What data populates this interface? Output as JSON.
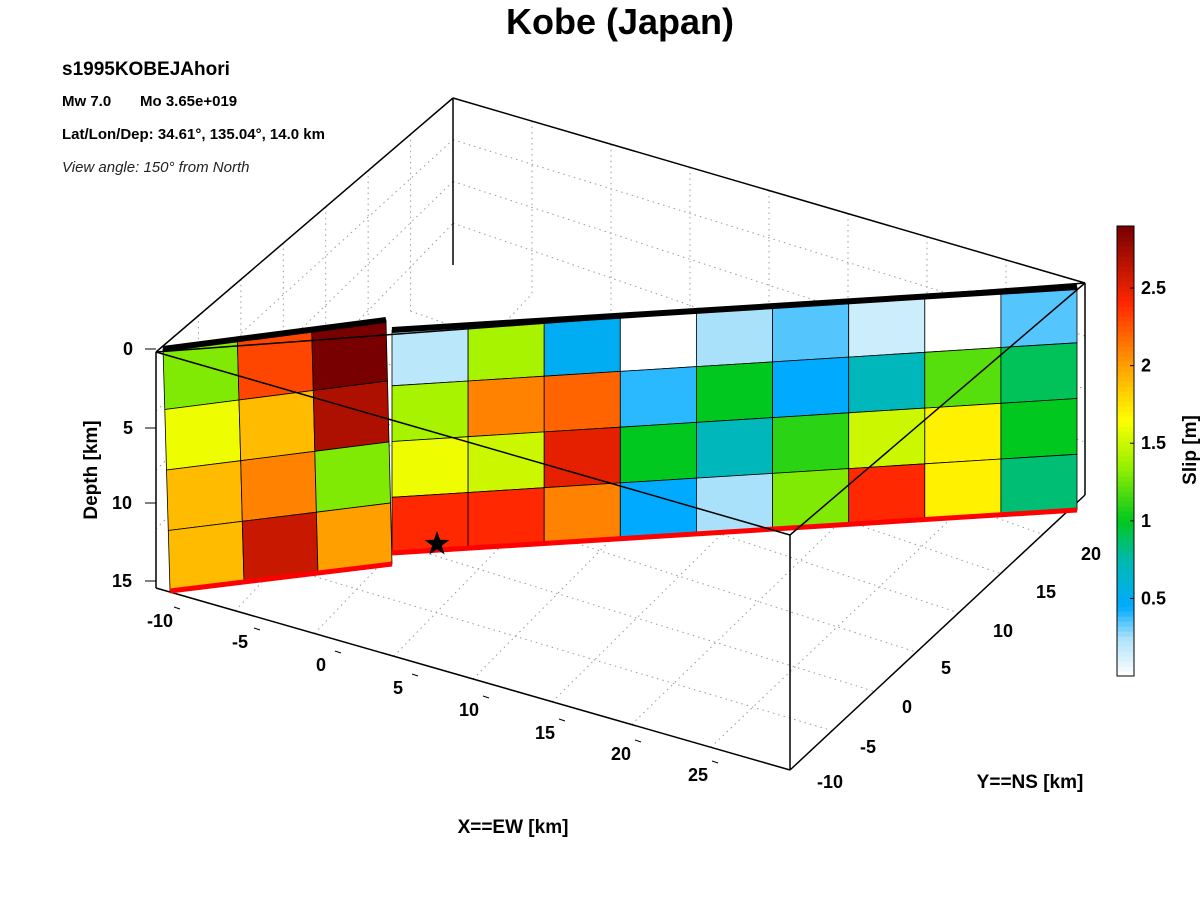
{
  "chart_data": {
    "type": "heatmap",
    "title": "Kobe (Japan)",
    "model_name": "s1995KOBEJAhori",
    "mw_text": "Mw 7.0",
    "mo_text": "Mo 3.65e+019",
    "location_text": "Lat/Lon/Dep: 34.61°, 135.04°, 14.0 km",
    "view_text": "View angle: 150° from North",
    "xlabel": "X==EW [km]",
    "ylabel": "Y==NS [km]",
    "zlabel": "Depth [km]",
    "colorbar_label": "Slip [m]",
    "xticks": [
      "-10",
      "-5",
      "0",
      "5",
      "10",
      "15",
      "20",
      "25"
    ],
    "yticks": [
      "-10",
      "-5",
      "0",
      "5",
      "10",
      "15",
      "20"
    ],
    "zticks": [
      "0",
      "5",
      "10",
      "15"
    ],
    "colorbar_ticks": [
      "0.5",
      "1",
      "1.5",
      "2",
      "2.5"
    ],
    "colorbar_range": [
      0,
      2.9
    ],
    "grid": true,
    "hypocenter_marker": "star",
    "segments": [
      {
        "name": "",
        "rows": 4,
        "cols": 3,
        "slip": [
          [
            1.3,
            2.3,
            2.9
          ],
          [
            1.6,
            1.9,
            2.7
          ],
          [
            1.9,
            2.1,
            1.3
          ],
          [
            1.9,
            2.6,
            2.0
          ]
        ]
      },
      {
        "name": "",
        "rows": 4,
        "cols": 9,
        "slip": [
          [
            0.2,
            1.4,
            0.5,
            0.0,
            0.25,
            0.35,
            0.15,
            0.0,
            0.35
          ],
          [
            1.4,
            2.1,
            2.2,
            0.4,
            1.0,
            0.45,
            0.7,
            1.2,
            0.9
          ],
          [
            1.6,
            1.5,
            2.5,
            1.0,
            0.7,
            1.1,
            1.5,
            1.7,
            1.0
          ],
          [
            2.4,
            2.4,
            2.1,
            0.45,
            0.25,
            1.3,
            2.4,
            1.7,
            0.85
          ]
        ]
      }
    ]
  }
}
